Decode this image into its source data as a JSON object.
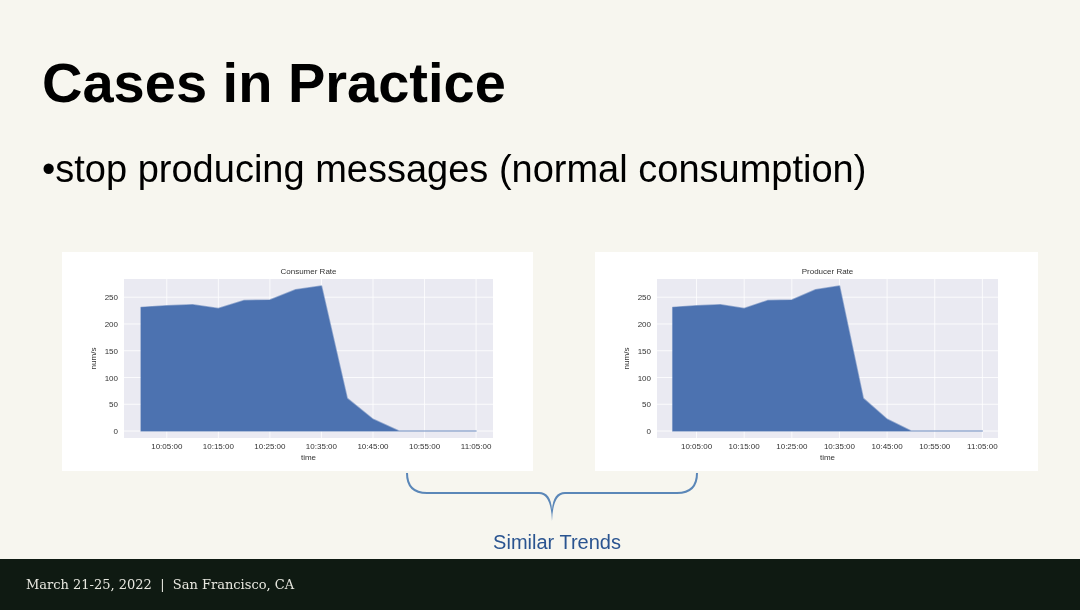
{
  "chart_data": [
    {
      "type": "other",
      "title": "Cases in Practice",
      "subtitle": "•stop producing messages  (normal consumption)",
      "annotations": [
        "Similar Trends",
        "March 21-25, 2022  |  San Francisco, CA"
      ]
    },
    {
      "type": "area",
      "title": "Consumer Rate",
      "xlabel": "time",
      "ylabel": "num/s",
      "color": "#4c72b0",
      "grid": true,
      "x": [
        10,
        10.083333,
        10.166667,
        10.25,
        10.333333,
        10.416667,
        10.5,
        10.583333,
        10.666667,
        10.75,
        10.833333,
        10.916667,
        11,
        11.083333
      ],
      "values": [
        231,
        234,
        236,
        229,
        244,
        245,
        264,
        271,
        61,
        22,
        0,
        0,
        0,
        0
      ],
      "xlim": [
        9.945,
        11.138
      ],
      "ylim": [
        -13,
        284
      ],
      "xticks": [
        {
          "value": 10.083333,
          "label": "10:05:00"
        },
        {
          "value": 10.25,
          "label": "10:15:00"
        },
        {
          "value": 10.416667,
          "label": "10:25:00"
        },
        {
          "value": 10.583333,
          "label": "10:35:00"
        },
        {
          "value": 10.75,
          "label": "10:45:00"
        },
        {
          "value": 10.916667,
          "label": "10:55:00"
        },
        {
          "value": 11.083333,
          "label": "11:05:00"
        }
      ],
      "yticks": [
        0,
        50,
        100,
        150,
        200,
        250
      ]
    },
    {
      "type": "area",
      "title": "Producer Rate",
      "xlabel": "time",
      "ylabel": "num/s",
      "color": "#4c72b0",
      "grid": true,
      "x": [
        10,
        10.083333,
        10.166667,
        10.25,
        10.333333,
        10.416667,
        10.5,
        10.583333,
        10.666667,
        10.75,
        10.833333,
        10.916667,
        11,
        11.083333
      ],
      "values": [
        231,
        234,
        236,
        229,
        244,
        245,
        264,
        271,
        61,
        22,
        0,
        0,
        0,
        0
      ],
      "xlim": [
        9.945,
        11.138
      ],
      "ylim": [
        -13,
        284
      ],
      "xticks": [
        {
          "value": 10.083333,
          "label": "10:05:00"
        },
        {
          "value": 10.25,
          "label": "10:15:00"
        },
        {
          "value": 10.416667,
          "label": "10:25:00"
        },
        {
          "value": 10.583333,
          "label": "10:35:00"
        },
        {
          "value": 10.75,
          "label": "10:45:00"
        },
        {
          "value": 10.916667,
          "label": "10:55:00"
        },
        {
          "value": 11.083333,
          "label": "11:05:00"
        }
      ],
      "yticks": [
        0,
        50,
        100,
        150,
        200,
        250
      ]
    }
  ]
}
